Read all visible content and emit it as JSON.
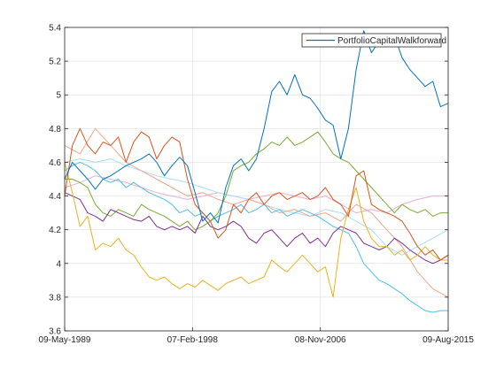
{
  "chart_data": {
    "type": "line",
    "title": "",
    "xlabel": "",
    "ylabel": "",
    "ylim": [
      3.6,
      5.4
    ],
    "yticks": [
      3.6,
      3.8,
      4,
      4.2,
      4.4,
      4.6,
      4.8,
      5,
      5.2,
      5.4
    ],
    "xticks": [
      "09-May-1989",
      "07-Feb-1998",
      "08-Nov-2006",
      "09-Aug-2015"
    ],
    "xtick_positions": [
      0,
      0.3333,
      0.6667,
      1
    ],
    "grid": true,
    "legend_position": "top-right",
    "legend": [
      "PortfolioCapitalWalkforward"
    ],
    "series": [
      {
        "name": "PortfolioCapitalWalkforward",
        "color": "#0072BD",
        "x": [
          0,
          0.02,
          0.04,
          0.06,
          0.08,
          0.1,
          0.12,
          0.14,
          0.16,
          0.18,
          0.2,
          0.22,
          0.24,
          0.26,
          0.28,
          0.3,
          0.32,
          0.34,
          0.36,
          0.38,
          0.4,
          0.42,
          0.44,
          0.46,
          0.48,
          0.5,
          0.52,
          0.54,
          0.56,
          0.58,
          0.6,
          0.62,
          0.64,
          0.66,
          0.68,
          0.7,
          0.72,
          0.74,
          0.76,
          0.78,
          0.8,
          0.82,
          0.84,
          0.86,
          0.88,
          0.9,
          0.92,
          0.94,
          0.96,
          0.98,
          1
        ],
        "values": [
          4.5,
          4.6,
          4.55,
          4.5,
          4.44,
          4.5,
          4.52,
          4.55,
          4.58,
          4.6,
          4.62,
          4.65,
          4.6,
          4.52,
          4.58,
          4.63,
          4.58,
          4.42,
          4.25,
          4.3,
          4.24,
          4.45,
          4.58,
          4.62,
          4.55,
          4.62,
          4.8,
          5.02,
          5.08,
          5.0,
          5.12,
          5.0,
          4.98,
          4.92,
          4.85,
          4.82,
          4.62,
          4.8,
          5.15,
          5.38,
          5.25,
          5.32,
          5.3,
          5.35,
          5.22,
          5.15,
          5.1,
          5.05,
          5.08,
          4.93,
          4.95
        ]
      },
      {
        "name": "",
        "color": "#D95319",
        "x": [
          0,
          0.02,
          0.04,
          0.06,
          0.08,
          0.1,
          0.12,
          0.14,
          0.16,
          0.18,
          0.2,
          0.22,
          0.24,
          0.26,
          0.28,
          0.3,
          0.32,
          0.34,
          0.36,
          0.38,
          0.4,
          0.42,
          0.44,
          0.46,
          0.48,
          0.5,
          0.52,
          0.54,
          0.56,
          0.58,
          0.6,
          0.62,
          0.64,
          0.66,
          0.68,
          0.7,
          0.72,
          0.74,
          0.76,
          0.78,
          0.8,
          0.82,
          0.84,
          0.86,
          0.88,
          0.9,
          0.92,
          0.94,
          0.96,
          0.98,
          1
        ],
        "values": [
          4.4,
          4.7,
          4.8,
          4.7,
          4.65,
          4.72,
          4.7,
          4.75,
          4.6,
          4.72,
          4.78,
          4.75,
          4.62,
          4.7,
          4.75,
          4.72,
          4.5,
          4.35,
          4.3,
          4.25,
          4.15,
          4.2,
          4.35,
          4.3,
          4.38,
          4.42,
          4.35,
          4.4,
          4.42,
          4.38,
          4.4,
          4.42,
          4.38,
          4.4,
          4.45,
          4.38,
          4.35,
          4.28,
          4.52,
          4.55,
          4.35,
          4.32,
          4.3,
          4.28,
          4.25,
          4.18,
          4.1,
          4.05,
          4.08,
          4.02,
          4.05
        ]
      },
      {
        "name": "",
        "color": "#EDB120",
        "x": [
          0,
          0.02,
          0.04,
          0.06,
          0.08,
          0.1,
          0.12,
          0.14,
          0.16,
          0.18,
          0.2,
          0.22,
          0.24,
          0.26,
          0.28,
          0.3,
          0.32,
          0.34,
          0.36,
          0.38,
          0.4,
          0.42,
          0.44,
          0.46,
          0.48,
          0.5,
          0.52,
          0.54,
          0.56,
          0.58,
          0.6,
          0.62,
          0.64,
          0.66,
          0.68,
          0.7,
          0.72,
          0.74,
          0.76,
          0.78,
          0.8,
          0.82,
          0.84,
          0.86,
          0.88,
          0.9,
          0.92,
          0.94,
          0.96,
          0.98,
          1
        ],
        "values": [
          4.6,
          4.42,
          4.22,
          4.28,
          4.08,
          4.12,
          4.1,
          4.15,
          4.08,
          4.05,
          3.98,
          3.92,
          3.9,
          3.92,
          3.88,
          3.85,
          3.88,
          3.86,
          3.9,
          3.87,
          3.84,
          3.88,
          3.9,
          3.92,
          3.88,
          3.9,
          3.92,
          4.02,
          3.98,
          3.95,
          4.0,
          4.05,
          4.0,
          3.95,
          3.98,
          3.8,
          4.15,
          4.32,
          4.45,
          4.25,
          4.15,
          4.1,
          4.1,
          4.05,
          4.08,
          4.02,
          4.05,
          4.1,
          4.05,
          4.02,
          4.02
        ]
      },
      {
        "name": "",
        "color": "#7E2F8E",
        "x": [
          0,
          0.02,
          0.04,
          0.06,
          0.08,
          0.1,
          0.12,
          0.14,
          0.16,
          0.18,
          0.2,
          0.22,
          0.24,
          0.26,
          0.28,
          0.3,
          0.32,
          0.34,
          0.36,
          0.38,
          0.4,
          0.42,
          0.44,
          0.46,
          0.48,
          0.5,
          0.52,
          0.54,
          0.56,
          0.58,
          0.6,
          0.62,
          0.64,
          0.66,
          0.68,
          0.7,
          0.72,
          0.74,
          0.76,
          0.78,
          0.8,
          0.82,
          0.84,
          0.86,
          0.88,
          0.9,
          0.92,
          0.94,
          0.96,
          0.98,
          1
        ],
        "values": [
          4.42,
          4.4,
          4.38,
          4.3,
          4.28,
          4.25,
          4.32,
          4.3,
          4.28,
          4.26,
          4.25,
          4.28,
          4.22,
          4.2,
          4.22,
          4.2,
          4.22,
          4.18,
          4.28,
          4.22,
          4.2,
          4.22,
          4.25,
          4.22,
          4.15,
          4.12,
          4.18,
          4.2,
          4.15,
          4.1,
          4.15,
          4.18,
          4.12,
          4.15,
          4.1,
          4.18,
          4.22,
          4.2,
          4.18,
          4.12,
          4.1,
          4.08,
          4.1,
          4.15,
          4.12,
          4.08,
          4.05,
          4.02,
          4.0,
          4.02,
          4.05
        ]
      },
      {
        "name": "",
        "color": "#77AC30",
        "x": [
          0,
          0.02,
          0.04,
          0.06,
          0.08,
          0.1,
          0.12,
          0.14,
          0.16,
          0.18,
          0.2,
          0.22,
          0.24,
          0.26,
          0.28,
          0.3,
          0.32,
          0.34,
          0.36,
          0.38,
          0.4,
          0.42,
          0.44,
          0.46,
          0.48,
          0.5,
          0.52,
          0.54,
          0.56,
          0.58,
          0.6,
          0.62,
          0.64,
          0.66,
          0.68,
          0.7,
          0.72,
          0.74,
          0.76,
          0.78,
          0.8,
          0.82,
          0.84,
          0.86,
          0.88,
          0.9,
          0.92,
          0.94,
          0.96,
          0.98,
          1
        ],
        "values": [
          4.5,
          4.5,
          4.48,
          4.45,
          4.35,
          4.3,
          4.28,
          4.32,
          4.3,
          4.28,
          4.35,
          4.32,
          4.3,
          4.28,
          4.25,
          4.22,
          4.25,
          4.2,
          4.22,
          4.25,
          4.3,
          4.4,
          4.55,
          4.58,
          4.6,
          4.65,
          4.68,
          4.72,
          4.7,
          4.75,
          4.7,
          4.72,
          4.75,
          4.78,
          4.72,
          4.65,
          4.62,
          4.6,
          4.55,
          4.5,
          4.45,
          4.4,
          4.35,
          4.3,
          4.35,
          4.32,
          4.3,
          4.32,
          4.28,
          4.3,
          4.3
        ]
      },
      {
        "name": "",
        "color": "#4DBEEE",
        "x": [
          0,
          0.02,
          0.04,
          0.06,
          0.08,
          0.1,
          0.12,
          0.14,
          0.16,
          0.18,
          0.2,
          0.22,
          0.24,
          0.26,
          0.28,
          0.3,
          0.32,
          0.34,
          0.36,
          0.38,
          0.4,
          0.42,
          0.44,
          0.46,
          0.48,
          0.5,
          0.52,
          0.54,
          0.56,
          0.58,
          0.6,
          0.62,
          0.64,
          0.66,
          0.68,
          0.7,
          0.72,
          0.74,
          0.76,
          0.78,
          0.8,
          0.82,
          0.84,
          0.86,
          0.88,
          0.9,
          0.92,
          0.94,
          0.96,
          0.98,
          1
        ],
        "values": [
          4.55,
          4.58,
          4.6,
          4.58,
          4.55,
          4.5,
          4.48,
          4.5,
          4.45,
          4.48,
          4.45,
          4.42,
          4.4,
          4.38,
          4.35,
          4.3,
          4.32,
          4.28,
          4.3,
          4.25,
          4.28,
          4.3,
          4.32,
          4.35,
          4.3,
          4.32,
          4.35,
          4.3,
          4.32,
          4.28,
          4.3,
          4.32,
          4.3,
          4.28,
          4.25,
          4.22,
          4.2,
          4.18,
          4.1,
          4.0,
          3.95,
          3.9,
          3.88,
          3.85,
          3.82,
          3.78,
          3.75,
          3.72,
          3.71,
          3.72,
          3.72
        ]
      },
      {
        "name": "",
        "color": "#f0a58c",
        "x": [
          0,
          0.04,
          0.08,
          0.12,
          0.16,
          0.2,
          0.24,
          0.28,
          0.32,
          0.36,
          0.4,
          0.44,
          0.48,
          0.52,
          0.56,
          0.6,
          0.64,
          0.68,
          0.72,
          0.76,
          0.8,
          0.84,
          0.88,
          0.92,
          0.96,
          1
        ],
        "values": [
          4.7,
          4.65,
          4.8,
          4.7,
          4.6,
          4.55,
          4.5,
          4.45,
          4.4,
          4.42,
          4.38,
          4.35,
          4.38,
          4.35,
          4.3,
          4.32,
          4.28,
          4.3,
          4.25,
          4.35,
          4.3,
          4.2,
          4.1,
          3.95,
          3.85,
          3.8
        ]
      },
      {
        "name": "",
        "color": "#a9dcf5",
        "x": [
          0,
          0.04,
          0.08,
          0.12,
          0.16,
          0.2,
          0.24,
          0.28,
          0.32,
          0.36,
          0.4,
          0.44,
          0.48,
          0.52,
          0.56,
          0.6,
          0.64,
          0.68,
          0.72,
          0.76,
          0.8,
          0.84,
          0.88,
          0.92,
          0.96,
          1
        ],
        "values": [
          4.6,
          4.62,
          4.6,
          4.62,
          4.58,
          4.55,
          4.52,
          4.5,
          4.48,
          4.45,
          4.42,
          4.4,
          4.38,
          4.35,
          4.32,
          4.3,
          4.28,
          4.32,
          4.3,
          4.25,
          4.2,
          4.1,
          4.05,
          4.1,
          4.15,
          4.2
        ]
      },
      {
        "name": "",
        "color": "#e8b0d0",
        "x": [
          0,
          0.04,
          0.08,
          0.12,
          0.16,
          0.2,
          0.24,
          0.28,
          0.32,
          0.36,
          0.4,
          0.44,
          0.48,
          0.52,
          0.56,
          0.6,
          0.64,
          0.68,
          0.72,
          0.76,
          0.8,
          0.84,
          0.88,
          0.92,
          0.96,
          1
        ],
        "values": [
          4.45,
          4.48,
          4.52,
          4.5,
          4.48,
          4.45,
          4.42,
          4.4,
          4.38,
          4.4,
          4.42,
          4.4,
          4.38,
          4.4,
          4.42,
          4.4,
          4.38,
          4.4,
          4.35,
          4.3,
          4.32,
          4.3,
          4.35,
          4.38,
          4.4,
          4.4
        ]
      }
    ]
  }
}
